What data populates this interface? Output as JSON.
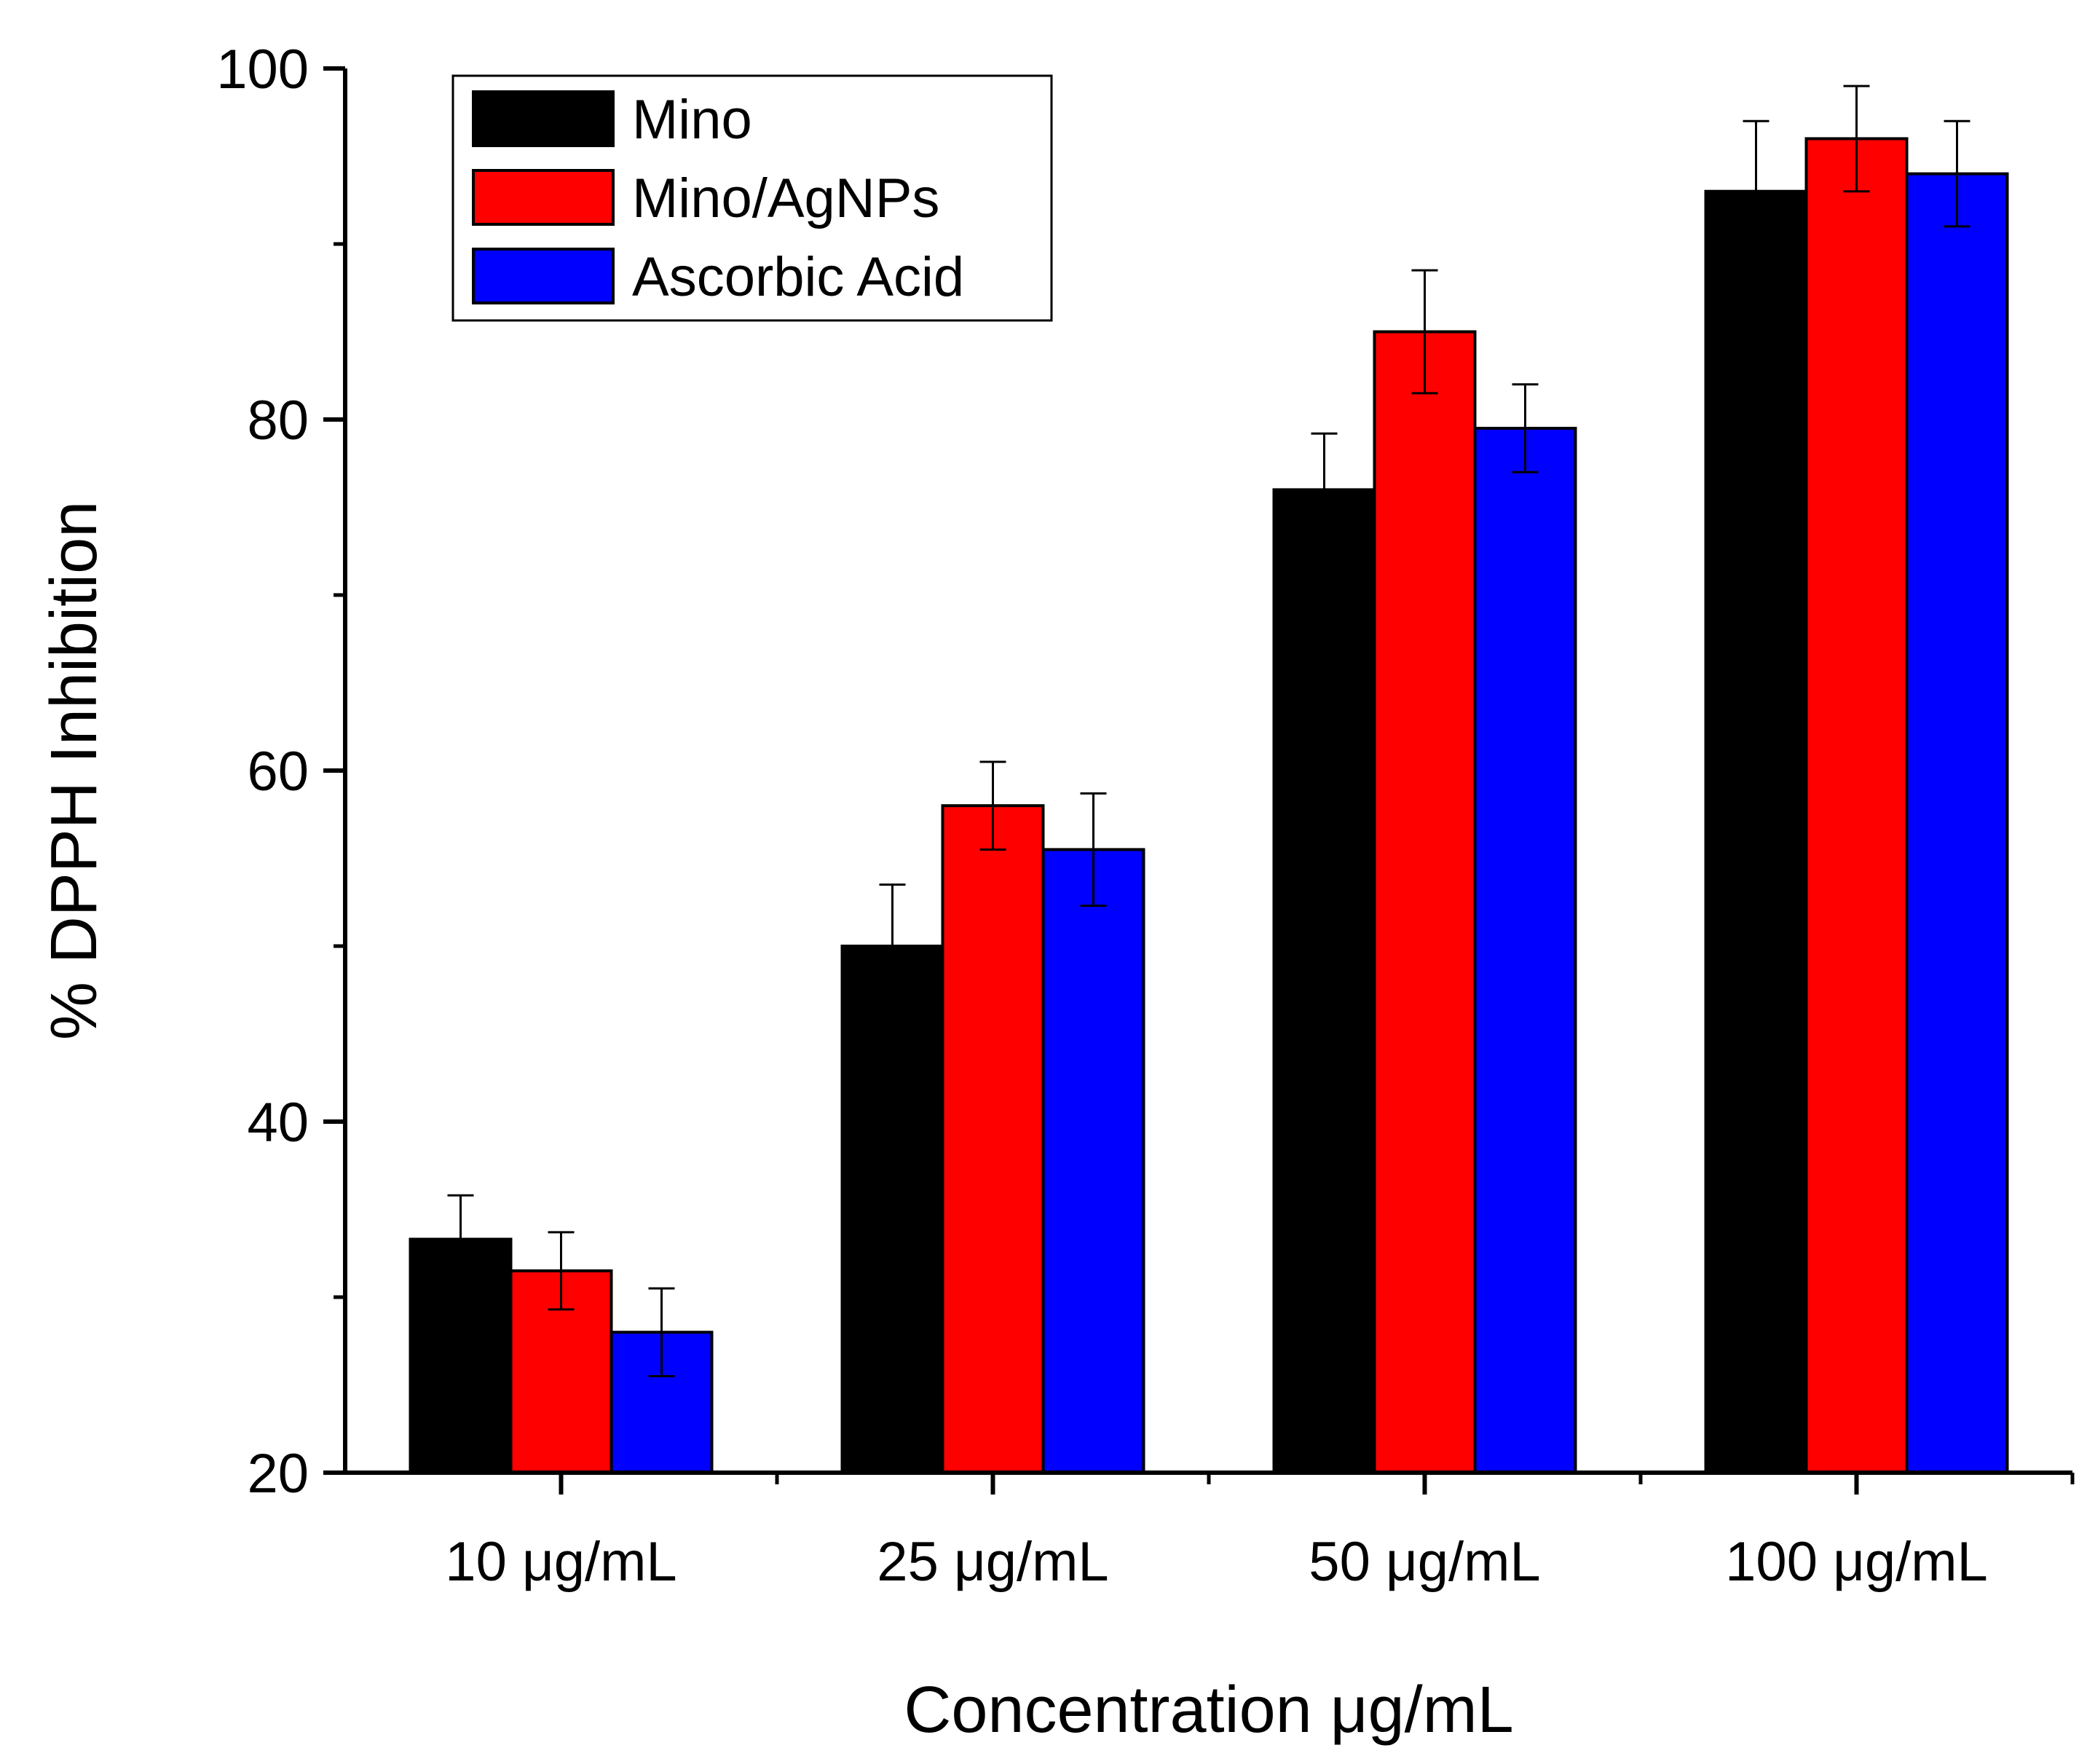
{
  "chart_data": {
    "type": "bar",
    "title": "",
    "xlabel": "Concentration μg/mL",
    "ylabel": "% DPPH Inhibition",
    "ylim": [
      20,
      100
    ],
    "yticks": [
      20,
      40,
      60,
      80,
      100
    ],
    "ytick_labels": [
      "20",
      "40",
      "60",
      "80",
      "100"
    ],
    "categories": [
      "10 μg/mL",
      "25 μg/mL",
      "50 μg/mL",
      "100 μg/mL"
    ],
    "series": [
      {
        "name": "Mino",
        "color": "#000000",
        "values": [
          33.3,
          50.0,
          76.0,
          93.0
        ],
        "errors": [
          2.5,
          3.5,
          3.2,
          4.0
        ]
      },
      {
        "name": "Mino/AgNPs",
        "color": "#ff0000",
        "values": [
          31.5,
          58.0,
          85.0,
          96.0
        ],
        "errors": [
          2.2,
          2.5,
          3.5,
          3.0
        ]
      },
      {
        "name": "Ascorbic Acid",
        "color": "#0000ff",
        "values": [
          28.0,
          55.5,
          79.5,
          94.0
        ],
        "errors": [
          2.5,
          3.2,
          2.5,
          3.0
        ]
      }
    ],
    "legend_position": "top-left",
    "grid": false
  }
}
